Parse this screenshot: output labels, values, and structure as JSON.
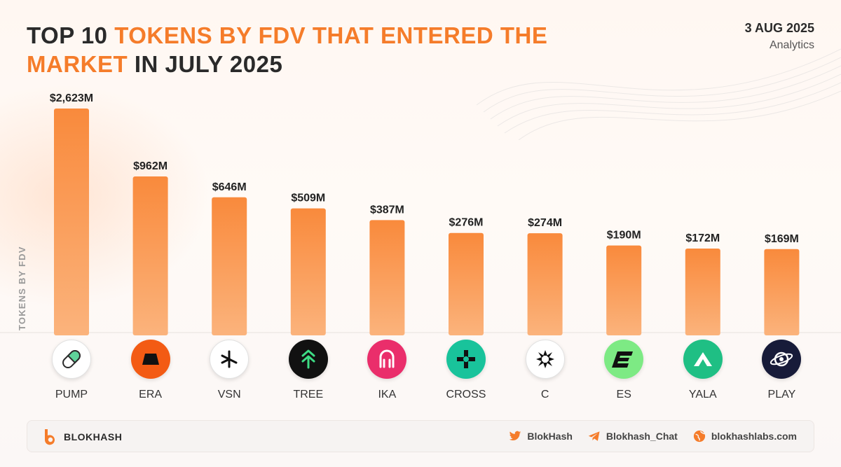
{
  "header": {
    "title_part1": "TOP 10 ",
    "title_part2": "TOKENS BY FDV THAT ENTERED THE MARKET",
    "title_part3": " IN JULY 2025",
    "date": "3 AUG 2025",
    "subtitle": "Analytics"
  },
  "colors": {
    "accent": "#f57c2a",
    "bar_top": "#f98a3c",
    "bar_bottom": "#fbb37c"
  },
  "chart_data": {
    "type": "bar",
    "title": "TOP 10 TOKENS BY FDV THAT ENTERED THE MARKET IN JULY 2025",
    "xlabel": "",
    "ylabel": "TOKENS BY FDV",
    "categories": [
      "PUMP",
      "ERA",
      "VSN",
      "TREE",
      "IKA",
      "CROSS",
      "C",
      "ES",
      "YALA",
      "PLAY"
    ],
    "values": [
      2623,
      962,
      646,
      509,
      387,
      276,
      274,
      190,
      172,
      169
    ],
    "value_labels": [
      "$2,623M",
      "$962M",
      "$646M",
      "$509M",
      "$387M",
      "$276M",
      "$274M",
      "$190M",
      "$172M",
      "$169M"
    ],
    "unit": "M USD",
    "grid": false,
    "legend": "none"
  },
  "tokens": [
    {
      "name": "PUMP",
      "icon": "pump-pill-icon",
      "bg": "#ffffff"
    },
    {
      "name": "ERA",
      "icon": "era-icon",
      "bg": "#f35b14"
    },
    {
      "name": "VSN",
      "icon": "vsn-icon",
      "bg": "#ffffff"
    },
    {
      "name": "TREE",
      "icon": "tree-icon",
      "bg": "#111111"
    },
    {
      "name": "IKA",
      "icon": "ika-icon",
      "bg": "#ea2e6b"
    },
    {
      "name": "CROSS",
      "icon": "cross-icon",
      "bg": "#19c39b"
    },
    {
      "name": "C",
      "icon": "c-icon",
      "bg": "#ffffff"
    },
    {
      "name": "ES",
      "icon": "es-icon",
      "bg": "#7dea84"
    },
    {
      "name": "YALA",
      "icon": "yala-icon",
      "bg": "#1fbf84"
    },
    {
      "name": "PLAY",
      "icon": "play-icon",
      "bg": "#171b39"
    }
  ],
  "footer": {
    "brand": "BLOKHASH",
    "twitter": "BlokHash",
    "telegram": "Blokhash_Chat",
    "website": "blokhashlabs.com"
  }
}
